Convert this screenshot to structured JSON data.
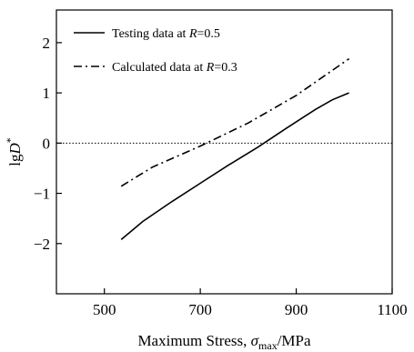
{
  "chart_data": {
    "type": "line",
    "title": "",
    "xlabel": {
      "main": "Maximum Stress, ",
      "sym": "σ",
      "sub": "max",
      "unit": "/MPa"
    },
    "ylabel": {
      "main": "lg",
      "sym": "D",
      "sup": "*"
    },
    "xlim": [
      400,
      1100
    ],
    "ylim": [
      -3,
      2.65
    ],
    "xticks": [
      500,
      700,
      900,
      1100
    ],
    "xtick_labels": [
      "500",
      "700",
      "900",
      "1100"
    ],
    "yticks": [
      -2,
      -1,
      0,
      1,
      2
    ],
    "ytick_labels": [
      "−2",
      "−1",
      "0",
      "1",
      "2"
    ],
    "reference_line": {
      "y": 0,
      "style": "dotted"
    },
    "legend_position": "top-left",
    "series": [
      {
        "name": "Testing data at R=0.5",
        "legend": {
          "text": "Testing data at ",
          "var": "R",
          "val": "=0.5"
        },
        "style": "solid",
        "x": [
          535,
          580,
          640,
          700,
          760,
          820,
          880,
          940,
          975,
          1010
        ],
        "y": [
          -1.92,
          -1.56,
          -1.17,
          -0.8,
          -0.43,
          -0.08,
          0.3,
          0.67,
          0.86,
          1.0
        ]
      },
      {
        "name": "Calculated data at R=0.3",
        "legend": {
          "text": "Calculated data at ",
          "var": "R",
          "val": "=0.3"
        },
        "style": "dashdot",
        "x": [
          535,
          600,
          700,
          800,
          900,
          1010
        ],
        "y": [
          -0.86,
          -0.48,
          -0.06,
          0.4,
          0.95,
          1.68
        ]
      }
    ]
  }
}
